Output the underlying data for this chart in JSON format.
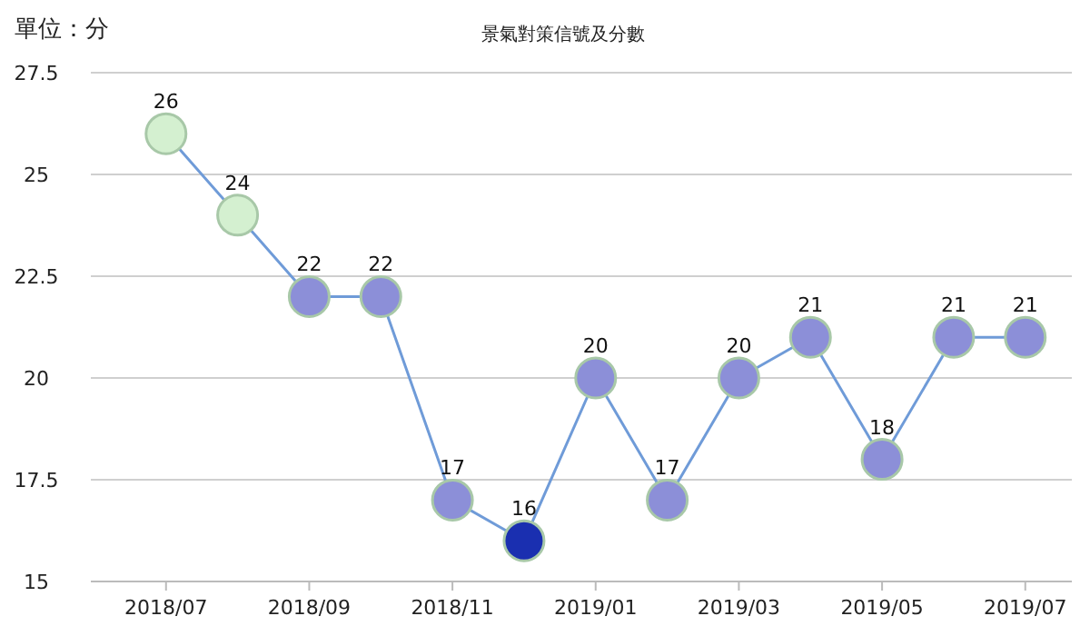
{
  "chart_data": {
    "type": "line",
    "title": "景氣對策信號及分數",
    "ylabel": "單位：分",
    "categories": [
      "2018/07",
      null,
      "2018/09",
      null,
      "2018/11",
      null,
      "2019/01",
      null,
      "2019/03",
      null,
      "2019/05",
      null,
      "2019/07"
    ],
    "series": [
      {
        "color": "#6f9bd8",
        "values": [
          26,
          24,
          22,
          22,
          17,
          16,
          20,
          17,
          20,
          21,
          18,
          21,
          21
        ],
        "colors": [
          "#d4f0d0",
          "#d4f0d0",
          "#8c8fd8",
          "#8c8fd8",
          "#8c8fd8",
          "#1a2fb0",
          "#8c8fd8",
          "#8c8fd8",
          "#8c8fd8",
          "#8c8fd8",
          "#8c8fd8",
          "#8c8fd8",
          "#8c8fd8"
        ]
      }
    ],
    "ylim": [
      15,
      27.5
    ],
    "yticks": [
      15,
      17.5,
      20,
      22.5,
      25,
      27.5
    ],
    "grid": "y",
    "marker": "circle",
    "data_labels": true
  }
}
